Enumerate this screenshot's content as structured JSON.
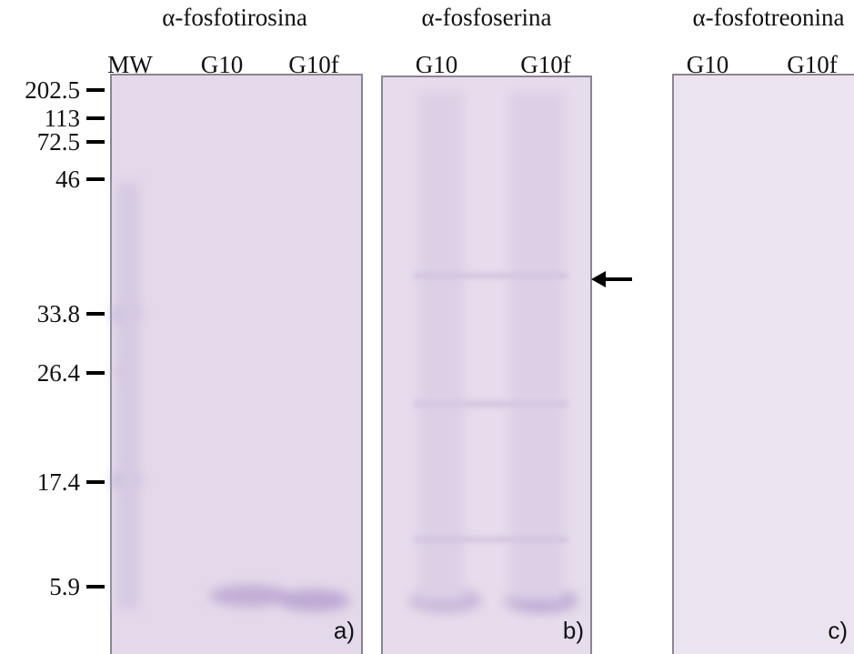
{
  "panels": [
    {
      "title": "α-fosfotirosina",
      "lanes": [
        "MW",
        "G10",
        "G10f"
      ],
      "label": "a)"
    },
    {
      "title": "α-fosfoserina",
      "lanes": [
        "G10",
        "G10f"
      ],
      "label": "b)"
    },
    {
      "title": "α-fosfotreonina",
      "lanes": [
        "G10",
        "G10f"
      ],
      "label": "c)"
    }
  ],
  "markers": [
    "202.5",
    "113",
    "72.5",
    "46",
    "33.8",
    "26.4",
    "17.4",
    "5.9"
  ]
}
